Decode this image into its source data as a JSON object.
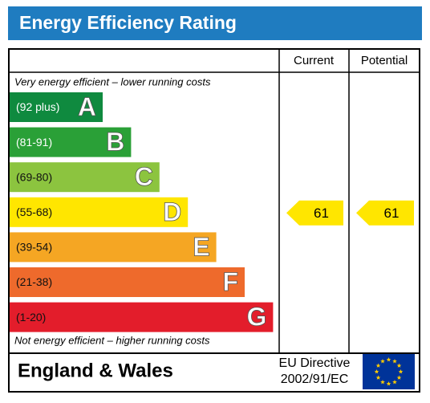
{
  "header": {
    "title": "Energy Efficiency Rating"
  },
  "columns": {
    "current": "Current",
    "potential": "Potential"
  },
  "top_note": "Very energy efficient – lower running costs",
  "bottom_note": "Not energy efficient – higher running costs",
  "bands": [
    {
      "range": "(92 plus)",
      "letter": "A",
      "color": "#0f8a3f"
    },
    {
      "range": "(81-91)",
      "letter": "B",
      "color": "#2aa037"
    },
    {
      "range": "(69-80)",
      "letter": "C",
      "color": "#8cc43f"
    },
    {
      "range": "(55-68)",
      "letter": "D",
      "color": "#ffe600"
    },
    {
      "range": "(39-54)",
      "letter": "E",
      "color": "#f5a623"
    },
    {
      "range": "(21-38)",
      "letter": "F",
      "color": "#ee6a2c"
    },
    {
      "range": "(1-20)",
      "letter": "G",
      "color": "#e31d2b"
    }
  ],
  "current": {
    "value": 61
  },
  "potential": {
    "value": 61
  },
  "footer": {
    "region": "England & Wales",
    "directive": [
      "EU Directive",
      "2002/91/EC"
    ]
  }
}
